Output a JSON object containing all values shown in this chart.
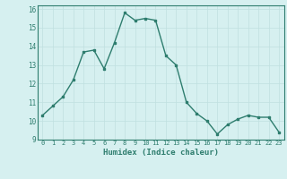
{
  "x": [
    0,
    1,
    2,
    3,
    4,
    5,
    6,
    7,
    8,
    9,
    10,
    11,
    12,
    13,
    14,
    15,
    16,
    17,
    18,
    19,
    20,
    21,
    22,
    23
  ],
  "y": [
    10.3,
    10.8,
    11.3,
    12.2,
    13.7,
    13.8,
    12.8,
    14.2,
    15.8,
    15.4,
    15.5,
    15.4,
    13.5,
    13.0,
    11.0,
    10.4,
    10.0,
    9.3,
    9.8,
    10.1,
    10.3,
    10.2,
    10.2,
    9.4
  ],
  "xlabel": "Humidex (Indice chaleur)",
  "line_color": "#2e7d6e",
  "marker_color": "#2e7d6e",
  "bg_color": "#d6f0f0",
  "grid_color": "#c0e0e0",
  "xlim": [
    -0.5,
    23.5
  ],
  "ylim": [
    9,
    16.2
  ],
  "yticks": [
    9,
    10,
    11,
    12,
    13,
    14,
    15,
    16
  ],
  "xticks": [
    0,
    1,
    2,
    3,
    4,
    5,
    6,
    7,
    8,
    9,
    10,
    11,
    12,
    13,
    14,
    15,
    16,
    17,
    18,
    19,
    20,
    21,
    22,
    23
  ]
}
